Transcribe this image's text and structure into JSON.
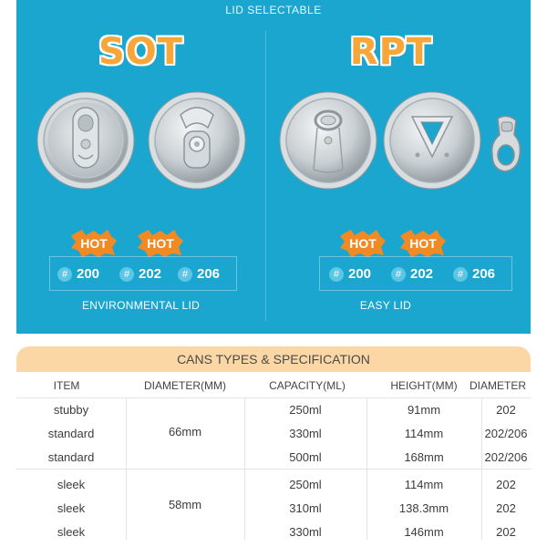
{
  "banner": {
    "title": "LID SELECTABLE",
    "background": "#1ba6cf",
    "left": {
      "brand": "SOT",
      "hot_badges": [
        "HOT",
        "HOT"
      ],
      "sizes": [
        "200",
        "202",
        "206"
      ],
      "caption": "ENVIRONMENTAL LID"
    },
    "right": {
      "brand": "RPT",
      "hot_badges": [
        "HOT",
        "HOT"
      ],
      "sizes": [
        "200",
        "202",
        "206"
      ],
      "caption": "EASY LID"
    },
    "hash_symbol": "#",
    "brand_color": "#f7a63a",
    "hot_color": "#f08a24"
  },
  "spec": {
    "title": "CANS TYPES & SPECIFICATION",
    "title_bg": "#fbd7a5",
    "headers": [
      "ITEM",
      "DIAMETER(MM)",
      "CAPACITY(ML)",
      "HEIGHT(MM)",
      "DIAMETER"
    ],
    "diameter_groups": [
      "66mm",
      "58mm"
    ],
    "rows": [
      {
        "item": "stubby",
        "capacity": "250ml",
        "height": "91mm",
        "diameter": "202"
      },
      {
        "item": "standard",
        "capacity": "330ml",
        "height": "114mm",
        "diameter": "202/206"
      },
      {
        "item": "standard",
        "capacity": "500ml",
        "height": "168mm",
        "diameter": "202/206"
      },
      {
        "item": "sleek",
        "capacity": "250ml",
        "height": "114mm",
        "diameter": "202"
      },
      {
        "item": "sleek",
        "capacity": "310ml",
        "height": "138.3mm",
        "diameter": "202"
      },
      {
        "item": "sleek",
        "capacity": "330ml",
        "height": "146mm",
        "diameter": "202"
      }
    ]
  }
}
